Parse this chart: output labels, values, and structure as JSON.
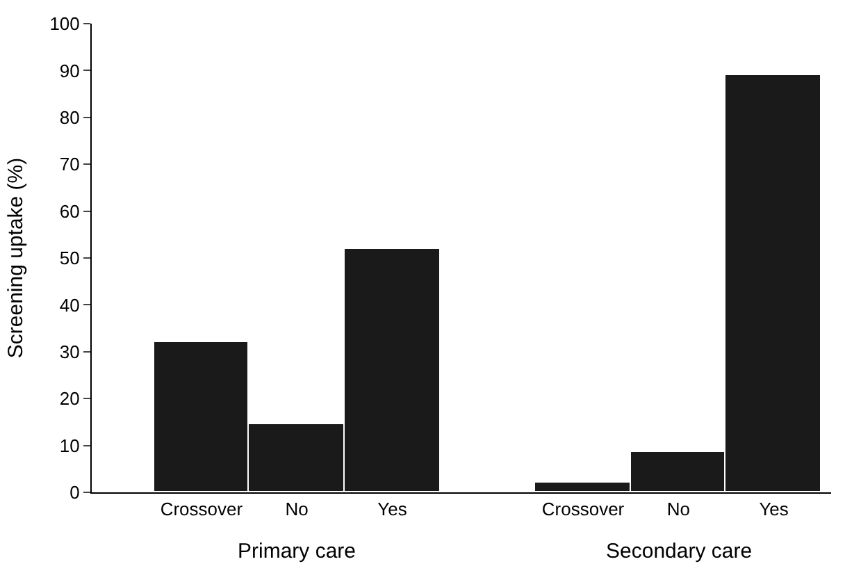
{
  "chart_data": {
    "type": "bar",
    "ylabel": "Screening uptake (%)",
    "categories": [
      "Crossover",
      "No",
      "Yes",
      null,
      "Crossover",
      "No",
      "Yes"
    ],
    "values": [
      32,
      14.5,
      52,
      null,
      2,
      8.5,
      89
    ],
    "color": "#1a1a1a",
    "ylim": [
      0,
      100
    ],
    "yticks": [
      0,
      10,
      20,
      30,
      40,
      50,
      60,
      70,
      80,
      90,
      100
    ],
    "annotations": [
      "Primary care",
      "Secondary care"
    ]
  }
}
